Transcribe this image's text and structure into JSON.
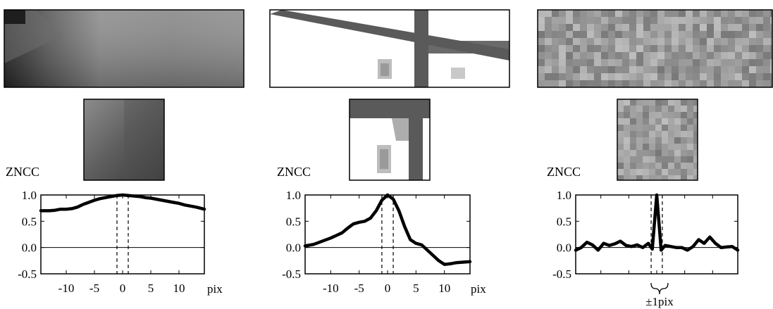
{
  "panels": [
    {
      "y_title": "ZNCC",
      "x_unit": "pix",
      "bracket_label": "",
      "x_ticks": [
        -10,
        -5,
        0,
        5,
        10
      ],
      "x_tick_labels": [
        "-10",
        "-5",
        "0",
        "5",
        "10"
      ],
      "y_ticks": [
        1.0,
        0.5,
        0.0,
        -0.5
      ],
      "y_tick_labels": [
        "1.0",
        "0.5",
        "0.0",
        "-0.5"
      ],
      "texture": "smooth-gradient"
    },
    {
      "y_title": "ZNCC",
      "x_unit": "pix",
      "bracket_label": "",
      "x_ticks": [
        -10,
        -5,
        0,
        5,
        10
      ],
      "x_tick_labels": [
        "-10",
        "-5",
        "0",
        "5",
        "10"
      ],
      "y_ticks": [
        1.0,
        0.5,
        0.0,
        -0.5
      ],
      "y_tick_labels": [
        "1.0",
        "0.5",
        "0.0",
        "-0.5"
      ],
      "texture": "window-frame-edges"
    },
    {
      "y_title": "ZNCC",
      "x_unit": "",
      "bracket_label": "±1pix",
      "x_ticks": [],
      "x_tick_labels": [],
      "y_ticks": [
        1.0,
        0.5,
        0.0,
        -0.5
      ],
      "y_tick_labels": [
        "1.0",
        "0.5",
        "0.0",
        "-0.5"
      ],
      "texture": "random-noise"
    }
  ],
  "colors": {
    "curve": "#000000",
    "axis": "#000000",
    "background": "#ffffff"
  },
  "chart_data": [
    {
      "type": "line",
      "xlim": [
        -14.5,
        14.5
      ],
      "ylim": [
        -0.5,
        1.0
      ],
      "x": [
        -14.5,
        -13,
        -12,
        -11,
        -10,
        -9,
        -8,
        -7,
        -6,
        -5,
        -4,
        -3,
        -2,
        -1,
        0,
        1,
        2,
        3,
        4,
        5,
        6,
        7,
        8,
        9,
        10,
        11,
        12,
        13,
        14.5
      ],
      "values": [
        0.7,
        0.7,
        0.71,
        0.73,
        0.73,
        0.74,
        0.77,
        0.82,
        0.86,
        0.9,
        0.93,
        0.95,
        0.97,
        0.99,
        1.0,
        0.99,
        0.98,
        0.97,
        0.95,
        0.94,
        0.92,
        0.9,
        0.88,
        0.86,
        0.84,
        0.81,
        0.79,
        0.77,
        0.73
      ],
      "reference_lines_x": [
        -1,
        1
      ],
      "zero_line_y": 0.0
    },
    {
      "type": "line",
      "xlim": [
        -14.5,
        14.5
      ],
      "ylim": [
        -0.5,
        1.0
      ],
      "x": [
        -14.5,
        -13,
        -12,
        -11,
        -10,
        -9,
        -8,
        -7,
        -6,
        -5,
        -4,
        -3,
        -2,
        -1,
        0,
        1,
        2,
        3,
        4,
        5,
        6,
        7,
        8,
        9,
        10,
        11,
        12,
        13,
        14.5
      ],
      "values": [
        0.03,
        0.06,
        0.1,
        0.14,
        0.18,
        0.23,
        0.28,
        0.37,
        0.45,
        0.48,
        0.5,
        0.56,
        0.7,
        0.9,
        1.0,
        0.92,
        0.7,
        0.4,
        0.15,
        0.08,
        0.05,
        -0.05,
        -0.15,
        -0.25,
        -0.32,
        -0.31,
        -0.29,
        -0.28,
        -0.27
      ],
      "reference_lines_x": [
        -1,
        1
      ],
      "zero_line_y": 0.0
    },
    {
      "type": "line",
      "xlim": [
        -14.5,
        14.5
      ],
      "ylim": [
        -0.5,
        1.0
      ],
      "x": [
        -14.5,
        -13.5,
        -12.5,
        -11.5,
        -10.5,
        -9.5,
        -8.5,
        -7.5,
        -6.5,
        -5.5,
        -4.5,
        -3.5,
        -2.5,
        -1.5,
        -0.8,
        0,
        0.8,
        1.5,
        2.5,
        3.5,
        4.5,
        5.5,
        6.5,
        7.5,
        8.5,
        9.5,
        10.5,
        11.5,
        12.5,
        13.5,
        14.5
      ],
      "values": [
        -0.05,
        0.0,
        0.1,
        0.05,
        -0.05,
        0.08,
        0.04,
        0.07,
        0.12,
        0.04,
        0.02,
        0.05,
        0.0,
        0.08,
        -0.03,
        1.0,
        -0.05,
        0.04,
        0.02,
        0.0,
        0.0,
        -0.05,
        0.02,
        0.15,
        0.08,
        0.2,
        0.08,
        0.0,
        0.01,
        0.02,
        -0.05
      ],
      "reference_lines_x": [
        -1,
        1
      ],
      "zero_line_y": 0.0
    }
  ]
}
